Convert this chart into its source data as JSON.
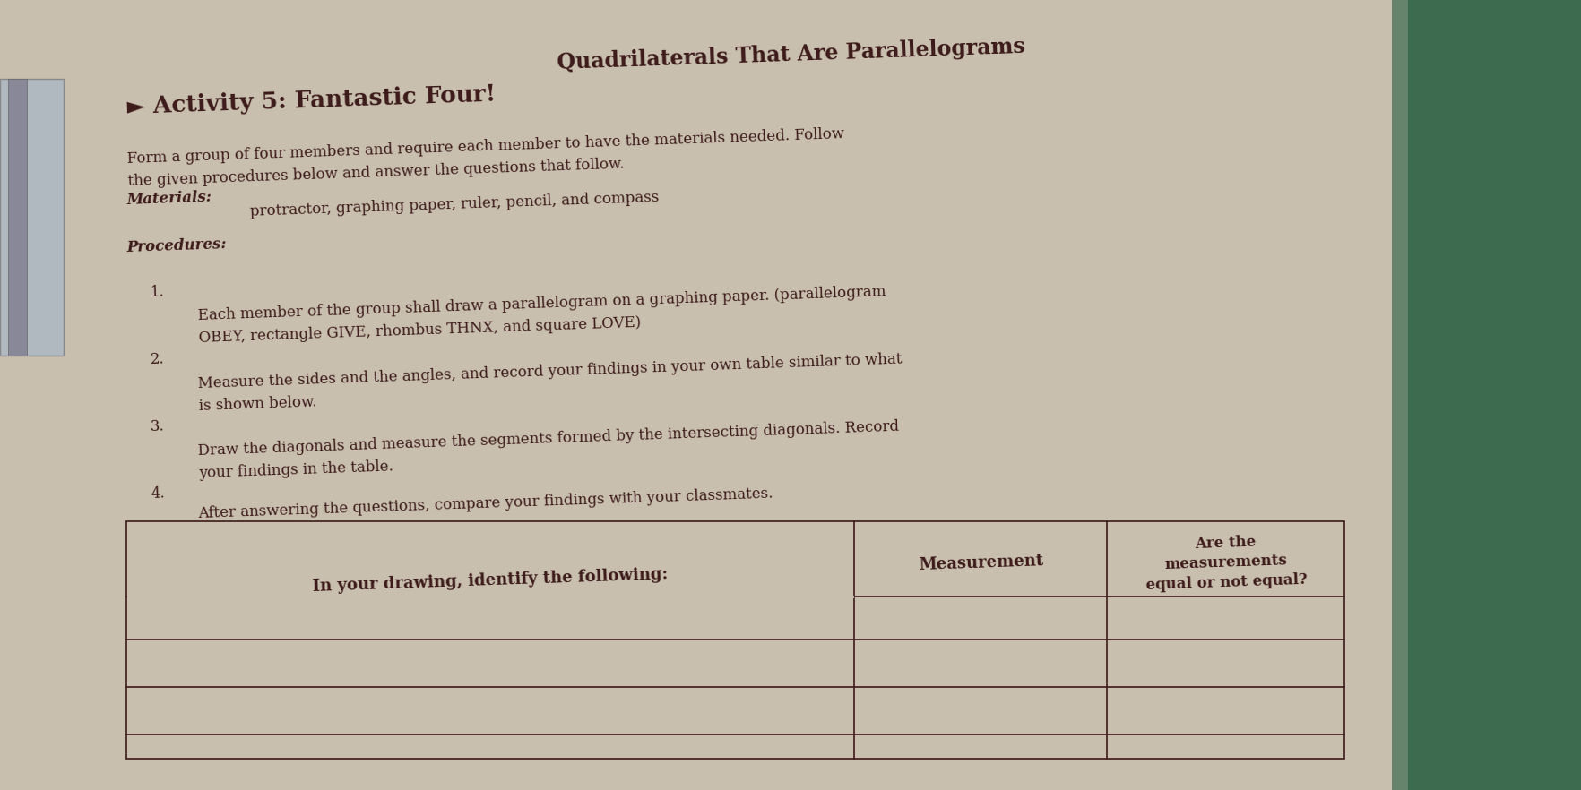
{
  "title": "Quadrilaterals That Are Parallelograms",
  "activity_label": "► Activity 5: Fantastic Four!",
  "intro_text": "Form a group of four members and require each member to have the materials needed. Follow\nthe given procedures below and answer the questions that follow.",
  "materials_label": "Materials:",
  "materials_text": " protractor, graphing paper, ruler, pencil, and compass",
  "procedures_label": "Procedures:",
  "procedures": [
    "Each member of the group shall draw a parallelogram on a graphing paper. (parallelogram\nOBEY, rectangle GIVE, rhombus THNX, and square LOVE)",
    "Measure the sides and the angles, and record your findings in your own table similar to what\nis shown below.",
    "Draw the diagonals and measure the segments formed by the intersecting diagonals. Record\nyour findings in the table.",
    "After answering the questions, compare your findings with your classmates."
  ],
  "table_col1": "In your drawing, identify the following:",
  "table_col2": "Measurement",
  "table_col3": "Are the\nmeasurements\nequal or not equal?",
  "bg_color": "#c8bfae",
  "text_color": "#3d1a1a",
  "title_fontsize": 17,
  "activity_fontsize": 19,
  "body_fontsize": 12,
  "materials_fontsize": 12,
  "table_fontsize": 12
}
